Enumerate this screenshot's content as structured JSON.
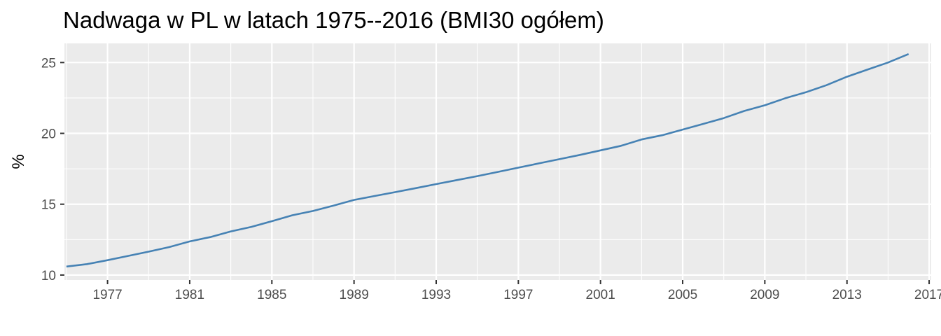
{
  "chart_data": {
    "type": "line",
    "title": "Nadwaga w PL w latach 1975--2016 (BMI30 ogółem)",
    "xlabel": "",
    "ylabel": "%",
    "xlim": [
      1974.9,
      2017.1
    ],
    "ylim": [
      9.65,
      26.35
    ],
    "x_ticks": [
      1977,
      1981,
      1985,
      1989,
      1993,
      1997,
      2001,
      2005,
      2009,
      2013,
      2017
    ],
    "y_ticks": [
      10,
      15,
      20,
      25
    ],
    "grid": true,
    "line_color": "#4682b4",
    "panel_color": "#ebebeb",
    "x": [
      1975,
      1976,
      1977,
      1978,
      1979,
      1980,
      1981,
      1982,
      1983,
      1984,
      1985,
      1986,
      1987,
      1988,
      1989,
      1990,
      1991,
      1992,
      1993,
      1994,
      1995,
      1996,
      1997,
      1998,
      1999,
      2000,
      2001,
      2002,
      2003,
      2004,
      2005,
      2006,
      2007,
      2008,
      2009,
      2010,
      2011,
      2012,
      2013,
      2014,
      2015,
      2016
    ],
    "values": [
      10.6,
      10.77,
      11.05,
      11.35,
      11.65,
      11.97,
      12.37,
      12.68,
      13.08,
      13.4,
      13.8,
      14.22,
      14.52,
      14.9,
      15.3,
      15.58,
      15.85,
      16.13,
      16.42,
      16.7,
      16.98,
      17.28,
      17.58,
      17.88,
      18.18,
      18.48,
      18.8,
      19.12,
      19.57,
      19.87,
      20.27,
      20.67,
      21.08,
      21.58,
      21.98,
      22.48,
      22.9,
      23.4,
      24.0,
      24.5,
      25.0,
      25.6
    ]
  }
}
